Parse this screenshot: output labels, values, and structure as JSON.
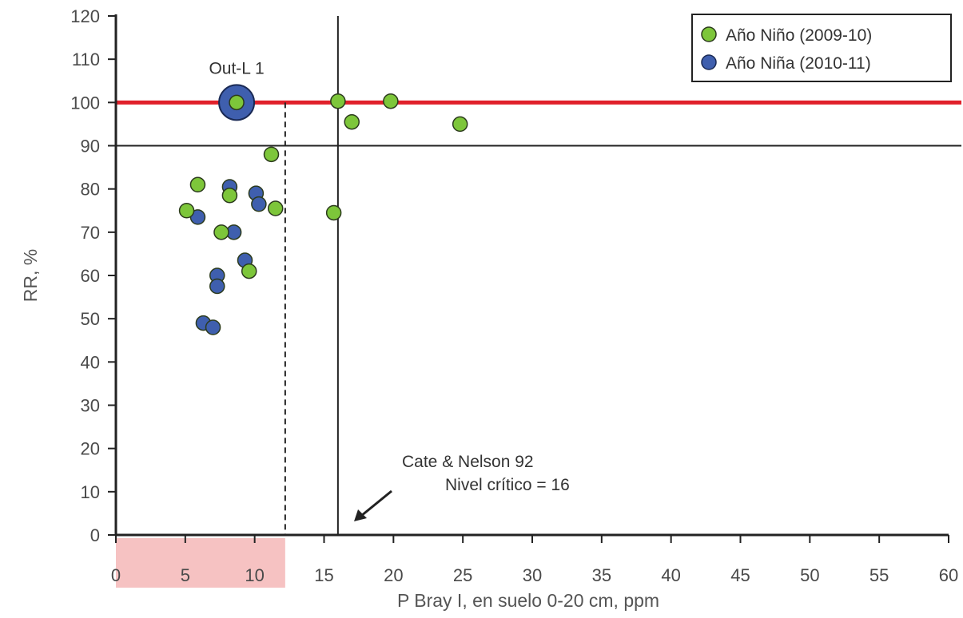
{
  "chart_data": {
    "type": "scatter",
    "title": "",
    "xlabel": "P Bray I, en suelo 0-20 cm, ppm",
    "ylabel": "RR, %",
    "xlim": [
      0,
      60
    ],
    "ylim": [
      0,
      120
    ],
    "x_ticks": [
      0,
      5,
      10,
      15,
      20,
      25,
      30,
      35,
      40,
      45,
      50,
      55,
      60
    ],
    "y_ticks": [
      0,
      10,
      20,
      30,
      40,
      50,
      60,
      70,
      80,
      90,
      100,
      110,
      120
    ],
    "grid": false,
    "legend_position": "top-right",
    "colors": {
      "nino": "#7dc63a",
      "nina": "#3f5fae",
      "reference_line": "#e0202a",
      "axis": "#222222",
      "highlight_band": "#f6c2c2"
    },
    "series": [
      {
        "name": "Año Niño (2009-10)",
        "color": "#7dc63a",
        "points": [
          {
            "x": 8.7,
            "y": 100
          },
          {
            "x": 16,
            "y": 100.3
          },
          {
            "x": 19.8,
            "y": 100.3
          },
          {
            "x": 17,
            "y": 95.5
          },
          {
            "x": 24.8,
            "y": 95
          },
          {
            "x": 11.2,
            "y": 88
          },
          {
            "x": 5.9,
            "y": 81
          },
          {
            "x": 8.2,
            "y": 78.5
          },
          {
            "x": 5.1,
            "y": 75
          },
          {
            "x": 11.5,
            "y": 75.5
          },
          {
            "x": 15.7,
            "y": 74.5
          },
          {
            "x": 7.6,
            "y": 70
          },
          {
            "x": 9.6,
            "y": 61
          }
        ]
      },
      {
        "name": "Año Niña (2010-11)",
        "color": "#3f5fae",
        "points": [
          {
            "x": 8.2,
            "y": 80.5
          },
          {
            "x": 10.1,
            "y": 79
          },
          {
            "x": 10.3,
            "y": 76.5
          },
          {
            "x": 5.9,
            "y": 73.5
          },
          {
            "x": 8.5,
            "y": 70
          },
          {
            "x": 9.3,
            "y": 63.5
          },
          {
            "x": 7.3,
            "y": 60
          },
          {
            "x": 7.3,
            "y": 57.5
          },
          {
            "x": 6.3,
            "y": 49
          },
          {
            "x": 7,
            "y": 48
          }
        ]
      }
    ],
    "outlier": {
      "label": "Out-L 1",
      "x": 8.7,
      "y": 100
    },
    "reference_lines": {
      "horizontal_red": 100,
      "horizontal_black": 90,
      "vertical_critical": 16,
      "vertical_dashed": 12.2
    },
    "highlight_x_range": [
      0,
      12.2
    ],
    "annotation": {
      "line1": "Cate & Nelson 92",
      "line2": "Nivel crítico = 16"
    }
  }
}
